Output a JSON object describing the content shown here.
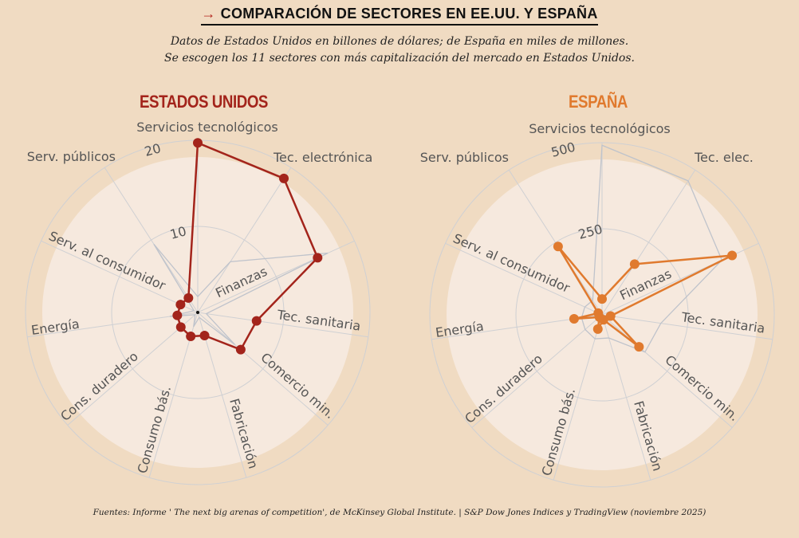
{
  "title": "COMPARACIÓN DE SECTORES EN EE.UU. Y ESPAÑA",
  "title_arrow": "→",
  "subtitle_1": "Datos de Estados Unidos en billones de dólares; de España en miles de millones.",
  "subtitle_2": "Se escogen los 11 sectores con más capitalización del mercado en Estados Unidos.",
  "footer": "Fuentes: Informe ' The next big arenas of competition', de McKinsey Global Institute. | S&P Dow Jones Indices y TradingView (noviembre 2025)",
  "chart_data": [
    {
      "type": "radar",
      "title": "ESTADOS UNIDOS",
      "color": "#a3241b",
      "unit": "billones de dólares",
      "rmax": 20,
      "ticks": [
        {
          "value": 10,
          "label": "10"
        },
        {
          "value": 20,
          "label": "20"
        }
      ],
      "axes": [
        "Servicios tecnológicos",
        "Tec. electrónica",
        "Finanzas",
        "Tec. sanitaria",
        "Comercio min.",
        "Fabricación",
        "Consumo bás.",
        "Cons. duradero",
        "Energía",
        "Serv. al consumidor",
        "Serv. públicos"
      ],
      "values": [
        19.7,
        18.5,
        15.3,
        6.9,
        6.6,
        2.8,
        2.9,
        2.6,
        2.4,
        2.2,
        2.0
      ]
    },
    {
      "type": "radar",
      "title": "ESPAÑA",
      "color": "#e07a2e",
      "unit": "miles de millones",
      "rmax": 500,
      "ticks": [
        {
          "value": 250,
          "label": "250"
        },
        {
          "value": 500,
          "label": "500"
        }
      ],
      "axes": [
        "Servicios tecnológicos",
        "Tec. elec.",
        "Finanzas",
        "Tec. sanitaria",
        "Comercio min.",
        "Fabricación",
        "Consumo bás.",
        "Cons. duradero",
        "Energía",
        "Serv. al consumidor",
        "Serv. públicos"
      ],
      "values": [
        46,
        175,
        415,
        25,
        142,
        15,
        43,
        10,
        82,
        12,
        236
      ]
    }
  ],
  "colors": {
    "background": "#f0dbc2",
    "disc": "#f6e9de",
    "grid": "#cfd0d3",
    "overlay": "#bfc3cb"
  }
}
